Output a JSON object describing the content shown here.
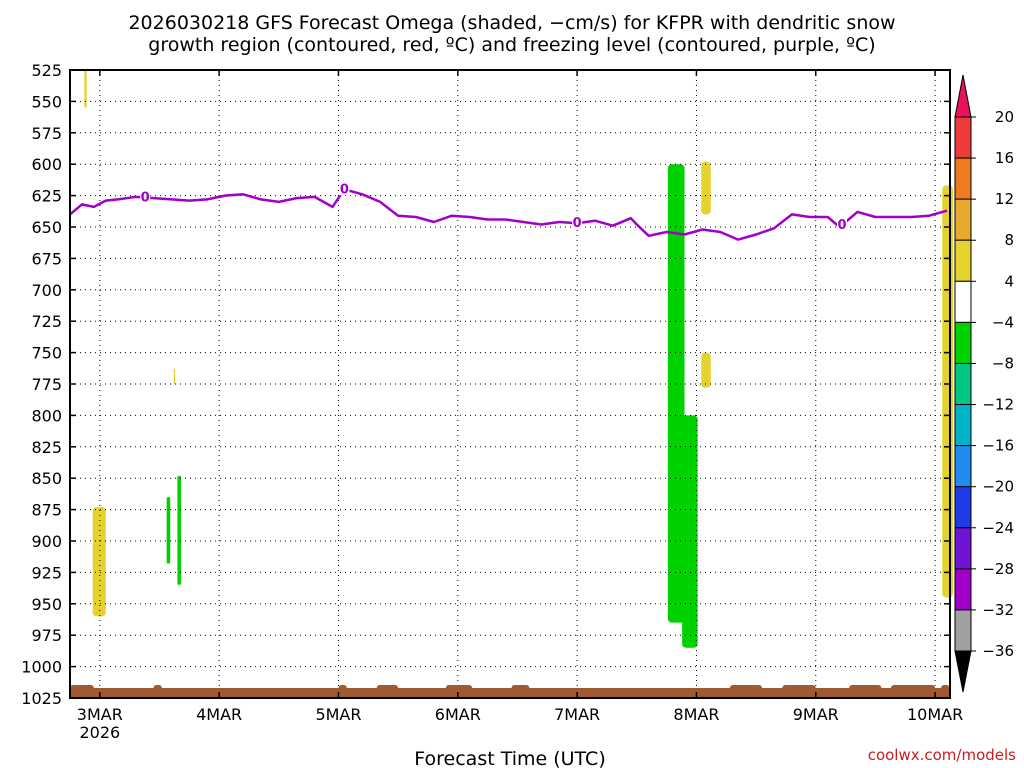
{
  "title_lines": [
    "2026030218 GFS Forecast Omega (shaded, −cm/s) for KFPR with dendritic snow",
    "growth region (contoured, red, ºC) and freezing level (contoured, purple, ºC)"
  ],
  "xlabel": "Forecast Time (UTC)",
  "credit": "coolwx.com/models",
  "colors": {
    "freezing_level": "#a000c8",
    "ground": "#a05a32",
    "grid": "#000000",
    "frame": "#000000",
    "credit": "#c81e1e"
  },
  "chart_data": {
    "type": "heatmap",
    "title": "2026030218 GFS Forecast Omega (shaded, −cm/s) for KFPR with dendritic snow growth region (contoured, red, ºC) and freezing level (contoured, purple, ºC)",
    "xlabel": "Forecast Time (UTC)",
    "ylabel": "",
    "y_axis": "pressure (hPa), inverted",
    "ylim": [
      525,
      1025
    ],
    "xlim_days": [
      2.75,
      10.125
    ],
    "grid": true,
    "y_ticks": [
      "525",
      "550",
      "575",
      "600",
      "625",
      "650",
      "675",
      "700",
      "725",
      "750",
      "775",
      "800",
      "825",
      "850",
      "875",
      "900",
      "925",
      "950",
      "975",
      "1000",
      "1025"
    ],
    "x_ticks": [
      {
        "label": "3MAR",
        "sub": "2026",
        "day": 3
      },
      {
        "label": "4MAR",
        "sub": "",
        "day": 4
      },
      {
        "label": "5MAR",
        "sub": "",
        "day": 5
      },
      {
        "label": "6MAR",
        "sub": "",
        "day": 6
      },
      {
        "label": "7MAR",
        "sub": "",
        "day": 7
      },
      {
        "label": "8MAR",
        "sub": "",
        "day": 8
      },
      {
        "label": "9MAR",
        "sub": "",
        "day": 9
      },
      {
        "label": "10MAR",
        "sub": "",
        "day": 10
      }
    ],
    "colorbar": {
      "labels": [
        "20",
        "16",
        "12",
        "8",
        "4",
        "−4",
        "−8",
        "−12",
        "−16",
        "−20",
        "−24",
        "−28",
        "−32",
        "−36"
      ],
      "colors": [
        "#e8145a",
        "#ee3c3c",
        "#ee7a22",
        "#e6aa2e",
        "#e6d22e",
        "#ffffff",
        "#00d200",
        "#00c882",
        "#00b4c8",
        "#1e8cf0",
        "#1e3ce6",
        "#6e14d2",
        "#a000c8",
        "#a0a0a0",
        "#000000"
      ]
    },
    "freezing_level_label": "0",
    "freezing_level": {
      "day": [
        2.75,
        2.85,
        2.95,
        3.05,
        3.15,
        3.3,
        3.45,
        3.6,
        3.75,
        3.9,
        4.05,
        4.2,
        4.35,
        4.5,
        4.65,
        4.8,
        4.95,
        5.05,
        5.2,
        5.35,
        5.5,
        5.65,
        5.8,
        5.95,
        6.1,
        6.25,
        6.4,
        6.55,
        6.7,
        6.85,
        7.0,
        7.15,
        7.3,
        7.45,
        7.5,
        7.6,
        7.75,
        7.9,
        8.05,
        8.2,
        8.35,
        8.5,
        8.65,
        8.8,
        8.95,
        9.1,
        9.2,
        9.35,
        9.5,
        9.65,
        9.8,
        9.95,
        10.1
      ],
      "pressure": [
        640,
        632,
        634,
        629,
        628,
        626,
        627,
        628,
        629,
        628,
        625,
        624,
        628,
        630,
        627,
        626,
        634,
        620,
        624,
        630,
        641,
        642,
        646,
        641,
        642,
        644,
        644,
        646,
        648,
        646,
        647,
        645,
        649,
        643,
        648,
        657,
        654,
        656,
        652,
        654,
        660,
        656,
        651,
        640,
        642,
        642,
        650,
        638,
        642,
        642,
        642,
        641,
        637
      ]
    },
    "shaded_regions": [
      {
        "day": [
          2.87,
          2.89
        ],
        "pressure": [
          525,
          555
        ],
        "value": 5
      },
      {
        "day": [
          2.94,
          3.05
        ],
        "pressure": [
          873,
          960
        ],
        "value": 5
      },
      {
        "day": [
          3.62,
          3.63
        ],
        "pressure": [
          763,
          775
        ],
        "value": 5
      },
      {
        "day": [
          3.56,
          3.59
        ],
        "pressure": [
          865,
          918
        ],
        "value": -6
      },
      {
        "day": [
          3.65,
          3.68
        ],
        "pressure": [
          848,
          935
        ],
        "value": -6
      },
      {
        "day": [
          7.76,
          7.9
        ],
        "pressure": [
          600,
          965
        ],
        "value": -6
      },
      {
        "day": [
          7.88,
          8.01
        ],
        "pressure": [
          800,
          985
        ],
        "value": -6
      },
      {
        "day": [
          8.04,
          8.12
        ],
        "pressure": [
          598,
          640
        ],
        "value": 5
      },
      {
        "day": [
          8.04,
          8.12
        ],
        "pressure": [
          750,
          778
        ],
        "value": 5
      },
      {
        "day": [
          10.06,
          10.15
        ],
        "pressure": [
          617,
          945
        ],
        "value": 5
      }
    ]
  }
}
